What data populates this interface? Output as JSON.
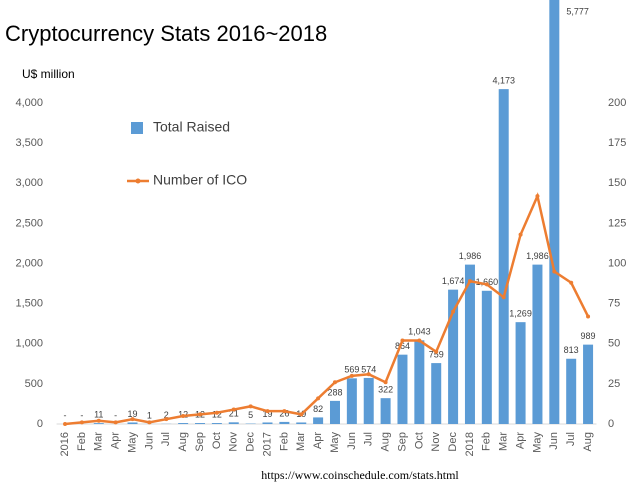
{
  "chart_data": {
    "type": "bar",
    "title": "Cryptocurrency Stats 2016~2018",
    "y_label": "U$ million",
    "source": "https://www.coinschedule.com/stats.html",
    "categories": [
      "2016",
      "Feb",
      "Mar",
      "Apr",
      "May",
      "Jun",
      "Jul",
      "Aug",
      "Sep",
      "Oct",
      "Nov",
      "Dec",
      "2017",
      "Feb",
      "Mar",
      "Apr",
      "May",
      "Jun",
      "Jul",
      "Aug",
      "Sep",
      "Oct",
      "Nov",
      "Dec",
      "2018",
      "Feb",
      "Mar",
      "Apr",
      "May",
      "Jun",
      "Jul",
      "Aug"
    ],
    "series": [
      {
        "name": "Total Raised",
        "type": "bar",
        "color": "#5b9bd5",
        "values": [
          0,
          0,
          11,
          0,
          19,
          1,
          2,
          12,
          12,
          12,
          21,
          5,
          19,
          26,
          19,
          82,
          288,
          569,
          574,
          322,
          864,
          1043,
          759,
          1674,
          1986,
          1660,
          4173,
          1269,
          1986,
          5777,
          813,
          989
        ],
        "value_labels": [
          "-",
          "-",
          "11",
          "-",
          "19",
          "1",
          "2",
          "12",
          "12",
          "12",
          "21",
          "5",
          "19",
          "26",
          "19",
          "82",
          "288",
          "569",
          "574",
          "322",
          "864",
          "1,043",
          "759",
          "1,674",
          "1,986",
          "1,660",
          "4,173",
          "1,269",
          "1,986",
          "5,777",
          "813",
          "989"
        ]
      },
      {
        "name": "Number of ICO",
        "type": "line",
        "color": "#ed7d31",
        "axis": "y2",
        "values": [
          0,
          1,
          2,
          1,
          3,
          1,
          3,
          5,
          6,
          7,
          9,
          11,
          8,
          8,
          6,
          16,
          26,
          30,
          31,
          26,
          52,
          52,
          45,
          70,
          89,
          87,
          79,
          118,
          142,
          95,
          88,
          67
        ]
      }
    ],
    "ylim": [
      0,
      4000
    ],
    "yticks": [
      0,
      500,
      {
        "value": 1000,
        "label": "1,000"
      },
      {
        "value": 1500,
        "label": "1,500"
      },
      {
        "value": 2000,
        "label": "2,000"
      },
      {
        "value": 2500,
        "label": "2,500"
      },
      {
        "value": 3000,
        "label": "3,000"
      },
      {
        "value": 3500,
        "label": "3,500"
      },
      {
        "value": 4000,
        "label": "4,000"
      }
    ],
    "y2lim": [
      0,
      200
    ],
    "y2ticks": [
      0,
      25,
      50,
      75,
      100,
      125,
      150,
      175,
      200
    ],
    "legend": "upper-left",
    "grid": false
  }
}
